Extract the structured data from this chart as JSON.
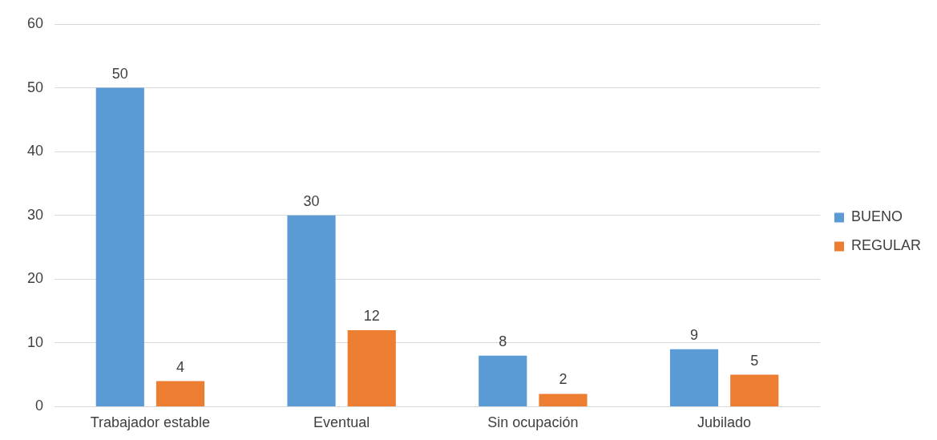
{
  "chart_data": {
    "type": "bar",
    "categories": [
      "Trabajador estable",
      "Eventual",
      "Sin ocupación",
      "Jubilado"
    ],
    "series": [
      {
        "name": "BUENO",
        "color": "#5b9bd5",
        "values": [
          50,
          30,
          8,
          9
        ]
      },
      {
        "name": "REGULAR",
        "color": "#ed7d31",
        "values": [
          4,
          12,
          2,
          5
        ]
      }
    ],
    "ylim": [
      0,
      60
    ],
    "yticks": [
      0,
      10,
      20,
      30,
      40,
      50,
      60
    ],
    "grid": "y",
    "legend": "right",
    "data_labels": true
  }
}
